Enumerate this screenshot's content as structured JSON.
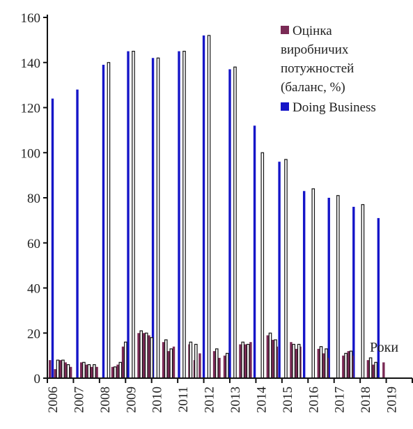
{
  "chart_data": {
    "type": "bar",
    "x_axis_label": "Роки",
    "ylim": [
      0,
      160
    ],
    "y_ticks": [
      0,
      20,
      40,
      60,
      80,
      100,
      120,
      140,
      160
    ],
    "year_labels": [
      "2006",
      "2007",
      "2008",
      "2009",
      "2010",
      "2011",
      "2012",
      "2013",
      "2014",
      "2015",
      "2016",
      "2017",
      "2018",
      "2019"
    ],
    "legend": [
      {
        "label_lines": [
          "Оцінка",
          "виробничих",
          "потужностей",
          "(баланс, %)"
        ],
        "color": "#7a2a55"
      },
      {
        "label_lines": [
          "Doing Business"
        ],
        "color": "#1515c8"
      }
    ],
    "series": [
      {
        "name": "Doing Business",
        "color": "#1515c8",
        "points": [
          {
            "x": 0.2,
            "y": 124
          },
          {
            "x": 1.15,
            "y": 128
          },
          {
            "x": 2.15,
            "y": 139
          },
          {
            "x": 3.1,
            "y": 145
          },
          {
            "x": 4.05,
            "y": 142
          },
          {
            "x": 5.05,
            "y": 145
          },
          {
            "x": 6.0,
            "y": 152
          },
          {
            "x": 7.0,
            "y": 137
          },
          {
            "x": 7.95,
            "y": 112
          },
          {
            "x": 8.9,
            "y": 96
          },
          {
            "x": 9.85,
            "y": 83
          },
          {
            "x": 10.8,
            "y": 80
          },
          {
            "x": 11.75,
            "y": 76
          },
          {
            "x": 12.7,
            "y": 71
          }
        ]
      },
      {
        "name": "Doing Business (outline)",
        "color": "#000000",
        "points": [
          {
            "x": 2.35,
            "y": 140
          },
          {
            "x": 3.3,
            "y": 145
          },
          {
            "x": 4.25,
            "y": 142
          },
          {
            "x": 5.25,
            "y": 145
          },
          {
            "x": 6.2,
            "y": 152
          },
          {
            "x": 7.2,
            "y": 138
          },
          {
            "x": 8.25,
            "y": 100
          },
          {
            "x": 9.15,
            "y": 97
          },
          {
            "x": 10.2,
            "y": 84
          },
          {
            "x": 11.15,
            "y": 81
          },
          {
            "x": 12.1,
            "y": 77
          }
        ]
      },
      {
        "name": "Оцінка виробничих потужностей (баланс, %)",
        "color": "#7a2a55",
        "points": [
          {
            "x": 0.1,
            "y": 8
          },
          {
            "x": 0.3,
            "y": 4
          },
          {
            "x": 0.5,
            "y": 8
          },
          {
            "x": 0.7,
            "y": 7
          },
          {
            "x": 0.9,
            "y": 5
          },
          {
            "x": 1.3,
            "y": 7
          },
          {
            "x": 1.5,
            "y": 6
          },
          {
            "x": 1.7,
            "y": 5
          },
          {
            "x": 1.9,
            "y": 5
          },
          {
            "x": 2.5,
            "y": 5
          },
          {
            "x": 2.7,
            "y": 6
          },
          {
            "x": 2.9,
            "y": 14
          },
          {
            "x": 3.5,
            "y": 20
          },
          {
            "x": 3.7,
            "y": 20
          },
          {
            "x": 3.9,
            "y": 19
          },
          {
            "x": 4.45,
            "y": 16
          },
          {
            "x": 4.65,
            "y": 12
          },
          {
            "x": 4.85,
            "y": 14
          },
          {
            "x": 5.45,
            "y": 15
          },
          {
            "x": 5.65,
            "y": 8
          },
          {
            "x": 5.85,
            "y": 11
          },
          {
            "x": 6.4,
            "y": 12
          },
          {
            "x": 6.6,
            "y": 9
          },
          {
            "x": 6.8,
            "y": 10
          },
          {
            "x": 7.4,
            "y": 15
          },
          {
            "x": 7.6,
            "y": 15
          },
          {
            "x": 7.8,
            "y": 16
          },
          {
            "x": 8.45,
            "y": 19
          },
          {
            "x": 8.65,
            "y": 17
          },
          {
            "x": 8.8,
            "y": 14
          },
          {
            "x": 9.35,
            "y": 16
          },
          {
            "x": 9.55,
            "y": 13
          },
          {
            "x": 9.7,
            "y": 14
          },
          {
            "x": 10.4,
            "y": 13
          },
          {
            "x": 10.6,
            "y": 11
          },
          {
            "x": 10.75,
            "y": 9
          },
          {
            "x": 11.35,
            "y": 10
          },
          {
            "x": 11.55,
            "y": 12
          },
          {
            "x": 11.7,
            "y": 10
          },
          {
            "x": 12.3,
            "y": 8
          },
          {
            "x": 12.5,
            "y": 6
          },
          {
            "x": 12.9,
            "y": 7
          }
        ]
      },
      {
        "name": "Оцінка (outline)",
        "color": "#000000",
        "points": [
          {
            "x": 0.4,
            "y": 8
          },
          {
            "x": 0.6,
            "y": 8
          },
          {
            "x": 0.8,
            "y": 6
          },
          {
            "x": 1.4,
            "y": 7
          },
          {
            "x": 1.6,
            "y": 6
          },
          {
            "x": 1.8,
            "y": 6
          },
          {
            "x": 2.6,
            "y": 5
          },
          {
            "x": 2.8,
            "y": 7
          },
          {
            "x": 3.0,
            "y": 16
          },
          {
            "x": 3.6,
            "y": 21
          },
          {
            "x": 3.8,
            "y": 20
          },
          {
            "x": 4.0,
            "y": 18
          },
          {
            "x": 4.55,
            "y": 17
          },
          {
            "x": 4.75,
            "y": 13
          },
          {
            "x": 5.5,
            "y": 16
          },
          {
            "x": 5.7,
            "y": 15
          },
          {
            "x": 6.5,
            "y": 13
          },
          {
            "x": 6.9,
            "y": 11
          },
          {
            "x": 7.5,
            "y": 16
          },
          {
            "x": 7.7,
            "y": 15
          },
          {
            "x": 8.55,
            "y": 20
          },
          {
            "x": 8.75,
            "y": 17
          },
          {
            "x": 9.45,
            "y": 15
          },
          {
            "x": 9.65,
            "y": 15
          },
          {
            "x": 10.5,
            "y": 14
          },
          {
            "x": 10.7,
            "y": 13
          },
          {
            "x": 11.45,
            "y": 11
          },
          {
            "x": 11.65,
            "y": 12
          },
          {
            "x": 12.4,
            "y": 9
          },
          {
            "x": 12.6,
            "y": 7
          }
        ]
      }
    ]
  }
}
